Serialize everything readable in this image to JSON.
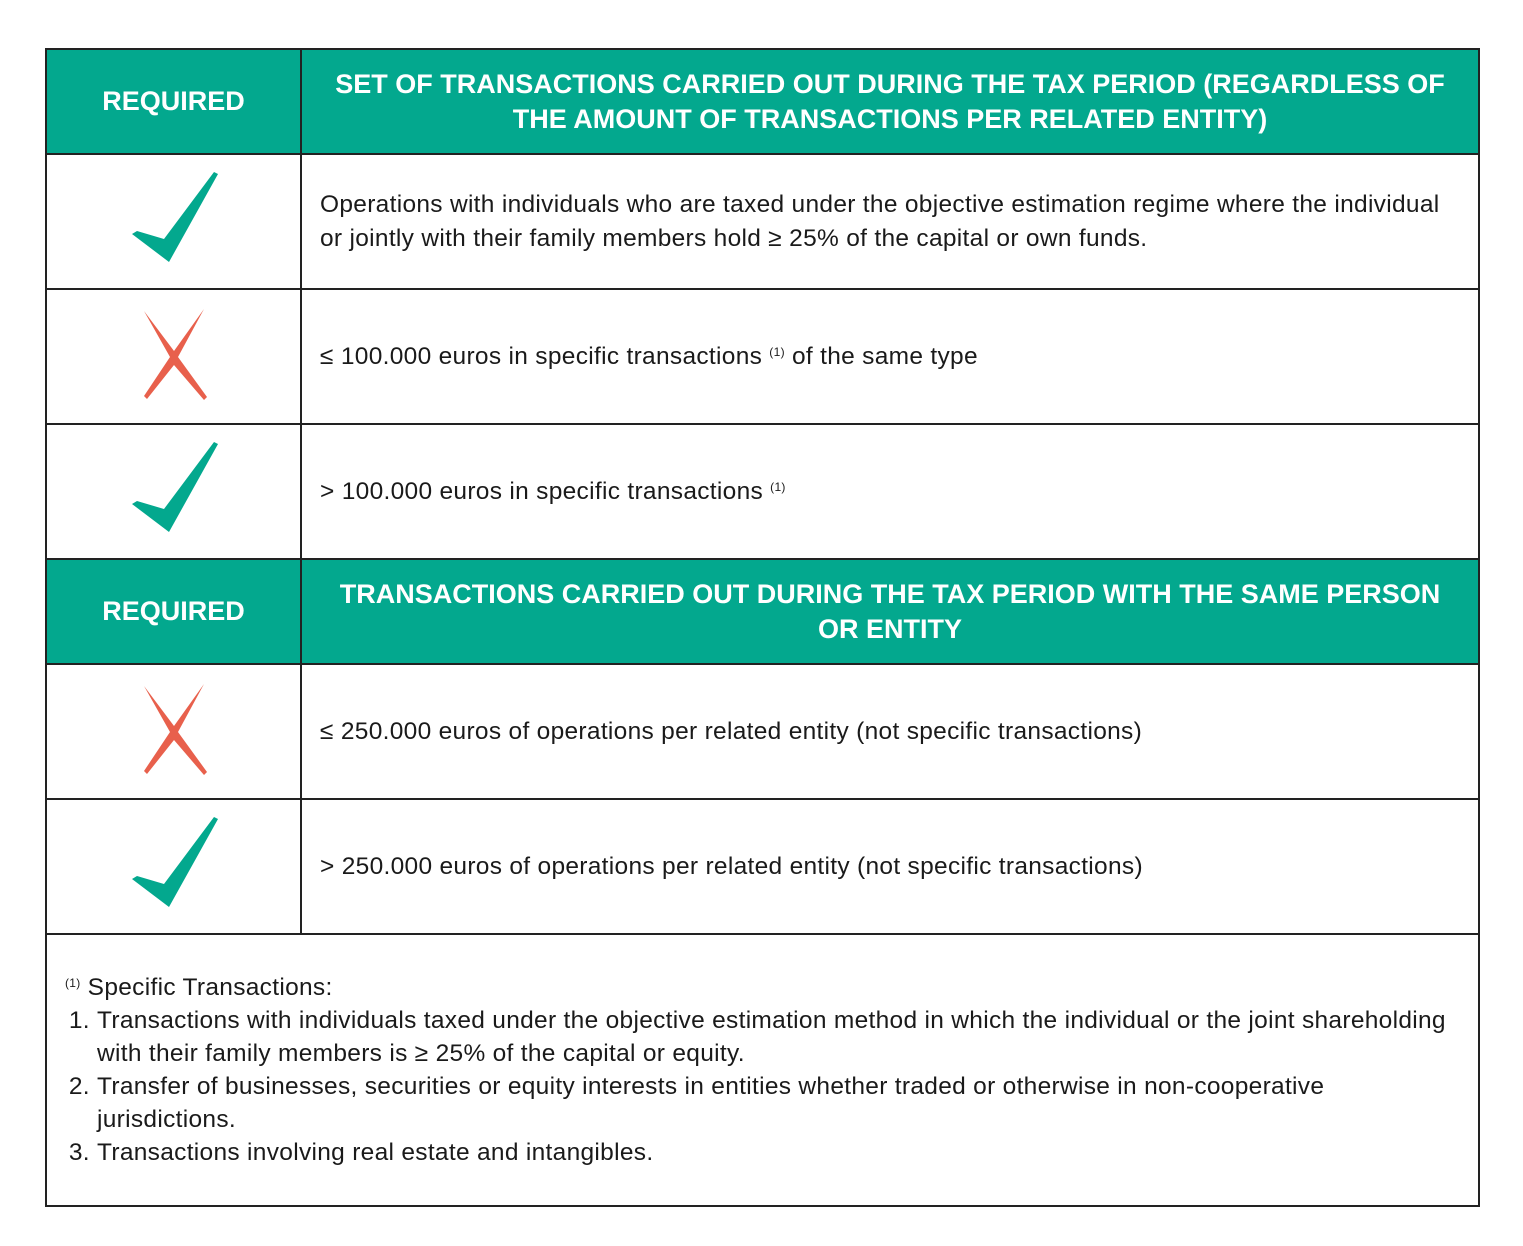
{
  "colors": {
    "header_bg": "#03a88e",
    "check": "#03a88e",
    "cross": "#e8604c"
  },
  "sections": [
    {
      "header": {
        "required": "REQUIRED",
        "title": "SET OF TRANSACTIONS CARRIED OUT DURING THE TAX PERIOD (REGARDLESS OF THE AMOUNT OF TRANSACTIONS PER RELATED ENTITY)"
      },
      "rows": [
        {
          "icon": "check-icon",
          "text": "Operations with individuals who are taxed under the objective estimation regime where the individual or jointly with their family members hold ≥ 25% of the capital or own funds."
        },
        {
          "icon": "cross-icon",
          "text": "≤ 100.000 euros in specific transactions ",
          "sup": "(1)",
          "text_after": " of the same type"
        },
        {
          "icon": "check-icon",
          "text": "> 100.000 euros in specific transactions ",
          "sup": "(1)"
        }
      ]
    },
    {
      "header": {
        "required": "REQUIRED",
        "title": "TRANSACTIONS CARRIED OUT DURING THE TAX PERIOD WITH THE SAME PERSON OR ENTITY"
      },
      "rows": [
        {
          "icon": "cross-icon",
          "text": "≤ 250.000 euros of operations per related entity (not specific transactions)"
        },
        {
          "icon": "check-icon",
          "text": "> 250.000 euros of operations per related entity (not specific transactions)"
        }
      ]
    }
  ],
  "footnote": {
    "sup": "(1)",
    "title": " Specific Transactions:",
    "items": [
      "Transactions with individuals taxed under the objective estimation method in which the individual or the joint shareholding with their family members is ≥ 25% of the capital or equity.",
      "Transfer of businesses, securities or equity interests in entities whether traded or otherwise in non-cooperative jurisdictions.",
      "Transactions involving real estate and intangibles."
    ]
  }
}
